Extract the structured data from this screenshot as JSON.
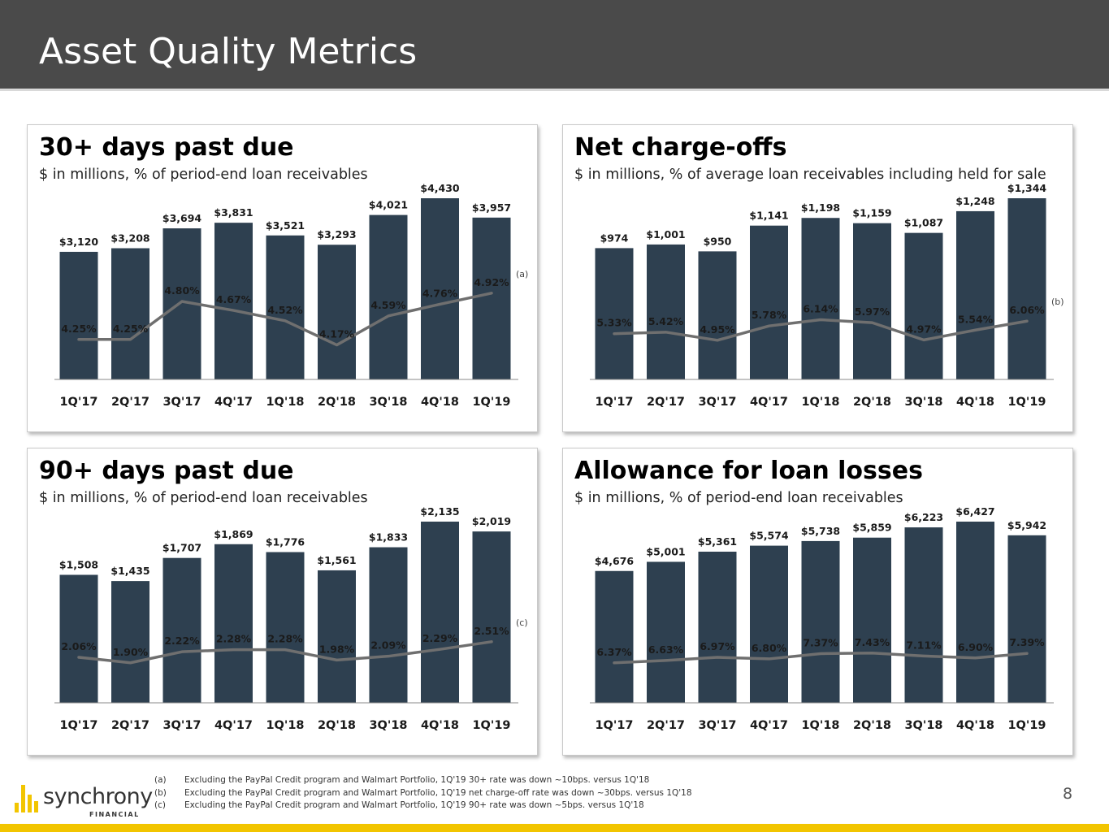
{
  "header": {
    "title": "Asset Quality Metrics"
  },
  "colors": {
    "bar": "#2e4050",
    "line": "#6f6f6f",
    "accent": "#f2c500",
    "header": "#4a4a4a"
  },
  "chart_data": [
    {
      "id": "dpd30",
      "type": "bar",
      "title": "30+ days past due",
      "subtitle": "$ in millions, % of period-end loan receivables",
      "categories": [
        "1Q'17",
        "2Q'17",
        "3Q'17",
        "4Q'17",
        "1Q'18",
        "2Q'18",
        "3Q'18",
        "4Q'18",
        "1Q'19"
      ],
      "values": [
        3120,
        3208,
        3694,
        3831,
        3521,
        3293,
        4021,
        4430,
        3957
      ],
      "value_labels": [
        "$3,120",
        "$3,208",
        "$3,694",
        "$3,831",
        "$3,521",
        "$3,293",
        "$4,021",
        "$4,430",
        "$3,957"
      ],
      "ylim": [
        0,
        4430
      ],
      "line_series": {
        "name": "% of period-end loan receivables",
        "values": [
          4.25,
          4.25,
          4.8,
          4.67,
          4.52,
          4.17,
          4.59,
          4.76,
          4.92
        ],
        "labels": [
          "4.25%",
          "4.25%",
          "4.80%",
          "4.67%",
          "4.52%",
          "4.17%",
          "4.59%",
          "4.76%",
          "4.92%"
        ],
        "ylim": [
          4.0,
          5.0
        ]
      },
      "note": "(a)"
    },
    {
      "id": "nco",
      "type": "bar",
      "title": "Net charge-offs",
      "subtitle": "$ in millions, % of average loan receivables including held for sale",
      "categories": [
        "1Q'17",
        "2Q'17",
        "3Q'17",
        "4Q'17",
        "1Q'18",
        "2Q'18",
        "3Q'18",
        "4Q'18",
        "1Q'19"
      ],
      "values": [
        974,
        1001,
        950,
        1141,
        1198,
        1159,
        1087,
        1248,
        1344
      ],
      "value_labels": [
        "$974",
        "$1,001",
        "$950",
        "$1,141",
        "$1,198",
        "$1,159",
        "$1,087",
        "$1,248",
        "$1,344"
      ],
      "ylim": [
        0,
        1344
      ],
      "line_series": {
        "name": "% of average loan receivables",
        "values": [
          5.33,
          5.42,
          4.95,
          5.78,
          6.14,
          5.97,
          4.97,
          5.54,
          6.06
        ],
        "labels": [
          "5.33%",
          "5.42%",
          "4.95%",
          "5.78%",
          "6.14%",
          "5.97%",
          "4.97%",
          "5.54%",
          "6.06%"
        ],
        "ylim": [
          4.0,
          8.0
        ]
      },
      "note": "(b)"
    },
    {
      "id": "dpd90",
      "type": "bar",
      "title": "90+ days past due",
      "subtitle": "$ in millions, % of period-end loan receivables",
      "categories": [
        "1Q'17",
        "2Q'17",
        "3Q'17",
        "4Q'17",
        "1Q'18",
        "2Q'18",
        "3Q'18",
        "4Q'18",
        "1Q'19"
      ],
      "values": [
        1508,
        1435,
        1707,
        1869,
        1776,
        1561,
        1833,
        2135,
        2019
      ],
      "value_labels": [
        "$1,508",
        "$1,435",
        "$1,707",
        "$1,869",
        "$1,776",
        "$1,561",
        "$1,833",
        "$2,135",
        "$2,019"
      ],
      "ylim": [
        0,
        2135
      ],
      "line_series": {
        "name": "% of period-end loan receivables",
        "values": [
          2.06,
          1.9,
          2.22,
          2.28,
          2.28,
          1.98,
          2.09,
          2.29,
          2.51
        ],
        "labels": [
          "2.06%",
          "1.90%",
          "2.22%",
          "2.28%",
          "2.28%",
          "1.98%",
          "2.09%",
          "2.29%",
          "2.51%"
        ],
        "ylim": [
          1.4,
          3.4
        ]
      },
      "note": "(c)"
    },
    {
      "id": "allowance",
      "type": "bar",
      "title": "Allowance for loan losses",
      "subtitle": "$ in millions, % of period-end loan receivables",
      "categories": [
        "1Q'17",
        "2Q'17",
        "3Q'17",
        "4Q'17",
        "1Q'18",
        "2Q'18",
        "3Q'18",
        "4Q'18",
        "1Q'19"
      ],
      "values": [
        4676,
        5001,
        5361,
        5574,
        5738,
        5859,
        6223,
        6427,
        5942
      ],
      "value_labels": [
        "$4,676",
        "$5,001",
        "$5,361",
        "$5,574",
        "$5,738",
        "$5,859",
        "$6,223",
        "$6,427",
        "$5,942"
      ],
      "ylim": [
        0,
        6427
      ],
      "line_series": {
        "name": "% of period-end loan receivables",
        "values": [
          6.37,
          6.63,
          6.97,
          6.8,
          7.37,
          7.43,
          7.11,
          6.9,
          7.39
        ],
        "labels": [
          "6.37%",
          "6.63%",
          "6.97%",
          "6.80%",
          "7.37%",
          "7.43%",
          "7.11%",
          "6.90%",
          "7.39%"
        ],
        "ylim": [
          4.5,
          12.0
        ]
      },
      "note": ""
    }
  ],
  "footnotes": [
    {
      "key": "(a)",
      "text": "Excluding the PayPal Credit program and Walmart Portfolio, 1Q'19 30+ rate was down ~10bps. versus 1Q'18"
    },
    {
      "key": "(b)",
      "text": "Excluding the PayPal Credit program and Walmart Portfolio, 1Q'19 net charge-off rate was down ~30bps. versus 1Q'18"
    },
    {
      "key": "(c)",
      "text": "Excluding the PayPal Credit program and Walmart Portfolio, 1Q'19 90+ rate was down ~5bps. versus 1Q'18"
    }
  ],
  "logo": {
    "name": "synchrony",
    "sub": "FINANCIAL"
  },
  "page_number": "8"
}
